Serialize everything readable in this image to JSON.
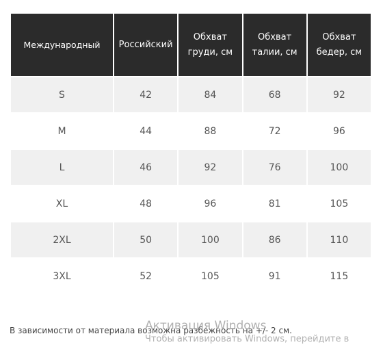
{
  "table": {
    "headers": [
      "Международный",
      "Российский",
      "Обхват груди, см",
      "Обхват талии, см",
      "Обхват бедер, см"
    ],
    "rows": [
      [
        "S",
        "42",
        "84",
        "68",
        "92"
      ],
      [
        "M",
        "44",
        "88",
        "72",
        "96"
      ],
      [
        "L",
        "46",
        "92",
        "76",
        "100"
      ],
      [
        "XL",
        "48",
        "96",
        "81",
        "105"
      ],
      [
        "2XL",
        "50",
        "100",
        "86",
        "110"
      ],
      [
        "3XL",
        "52",
        "105",
        "91",
        "115"
      ]
    ]
  },
  "note": "В зависимости от материала возможна разбежность на +/- 2 см.",
  "watermark": {
    "title": "Активация Windows",
    "subtitle": "Чтобы активировать Windows, перейдите в"
  },
  "colors": {
    "header_bg": "#2b2b2b",
    "shaded_row_bg": "#f0f0f0"
  }
}
